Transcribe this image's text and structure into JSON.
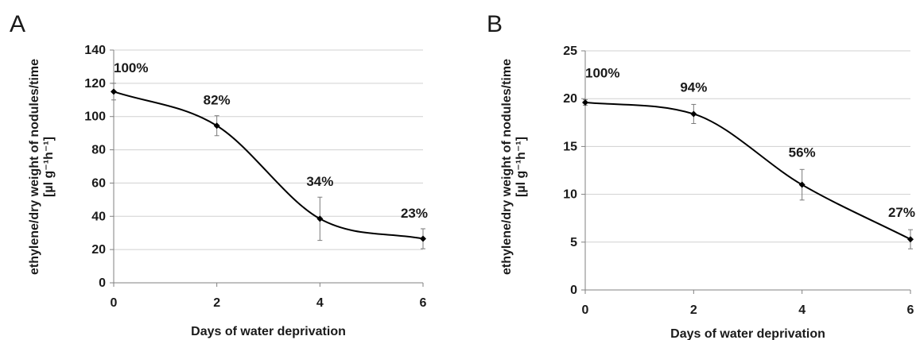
{
  "chart_data": [
    {
      "panel_label": "A",
      "type": "line",
      "xlabel": "Days of water deprivation",
      "ylabel_line1": "ethylene/dry weight of nodules/time",
      "ylabel_line2": "[µl g⁻¹h⁻¹]",
      "xlim": [
        0,
        6
      ],
      "ylim": [
        0,
        140
      ],
      "x_ticks": [
        "0",
        "2",
        "4",
        "6"
      ],
      "y_ticks": [
        "0",
        "20",
        "40",
        "60",
        "80",
        "100",
        "120",
        "140"
      ],
      "grid": "horizontal",
      "series": [
        {
          "x": [
            0,
            2,
            4,
            6
          ],
          "values": [
            115,
            94.5,
            38.5,
            26.5
          ],
          "error": [
            5,
            6,
            13,
            6
          ],
          "labels": [
            "100%",
            "82%",
            "34%",
            "23%"
          ]
        }
      ]
    },
    {
      "panel_label": "B",
      "type": "line",
      "xlabel": "Days of water deprivation",
      "ylabel_line1": "ethylene/dry weight of nodules/time",
      "ylabel_line2": "[µl g⁻¹h⁻¹]",
      "xlim": [
        0,
        6
      ],
      "ylim": [
        0,
        25
      ],
      "x_ticks": [
        "0",
        "2",
        "4",
        "6"
      ],
      "y_ticks": [
        "0",
        "5",
        "10",
        "15",
        "20",
        "25"
      ],
      "grid": "horizontal",
      "series": [
        {
          "x": [
            0,
            2,
            4,
            6
          ],
          "values": [
            19.6,
            18.4,
            11.0,
            5.3
          ],
          "error": [
            0.3,
            1.0,
            1.6,
            1.0
          ],
          "labels": [
            "100%",
            "94%",
            "56%",
            "27%"
          ]
        }
      ]
    }
  ]
}
